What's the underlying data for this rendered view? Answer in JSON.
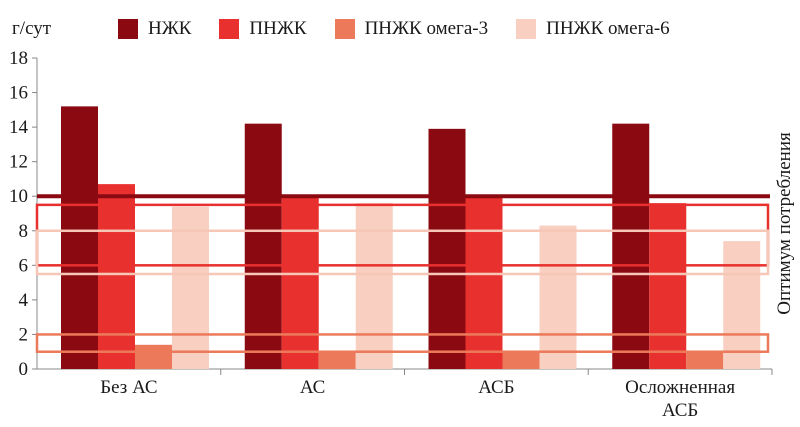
{
  "chart_data": {
    "type": "bar",
    "ylabel": "г/сут",
    "right_label": "Оптимум потребления",
    "ylim": [
      0,
      18
    ],
    "yticks": [
      0,
      2,
      4,
      6,
      8,
      10,
      12,
      14,
      16,
      18
    ],
    "categories": [
      "Без АС",
      "АС",
      "АСБ",
      "Осложненная АСБ"
    ],
    "series": [
      {
        "name": "НЖК",
        "color": "#8b0a12",
        "values": [
          15.2,
          14.2,
          13.9,
          14.2
        ]
      },
      {
        "name": "ПНЖК",
        "color": "#e8302e",
        "values": [
          10.7,
          10.1,
          10.1,
          9.6
        ]
      },
      {
        "name": "ПНЖК омега-3",
        "color": "#ec7a5a",
        "values": [
          1.4,
          1.0,
          1.0,
          1.0
        ]
      },
      {
        "name": "ПНЖК омега-6",
        "color": "#f8cfc0",
        "values": [
          9.4,
          9.6,
          8.3,
          7.4
        ]
      }
    ],
    "optimum_bands": [
      {
        "series": "НЖК",
        "type": "line",
        "value": 10,
        "color": "#8b0a12"
      },
      {
        "series": "ПНЖК",
        "type": "band",
        "range": [
          6,
          9.5
        ],
        "color": "#e8302e"
      },
      {
        "series": "ПНЖК омега-6",
        "type": "band",
        "range": [
          5.5,
          8
        ],
        "color": "#f6c7b6"
      },
      {
        "series": "ПНЖК омега-3",
        "type": "band",
        "range": [
          1,
          2
        ],
        "color": "#ec7a5a"
      }
    ],
    "grid": false,
    "legend_position": "top"
  }
}
